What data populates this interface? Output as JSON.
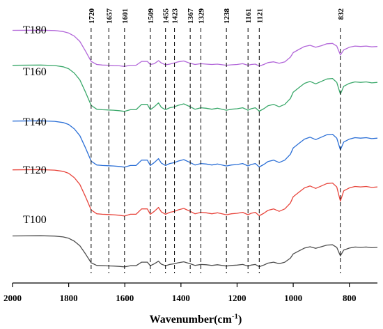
{
  "chart_data": {
    "type": "line",
    "title": "",
    "xlabel": "Wavenumber(cm",
    "xlabel_sup": "-1",
    "xlabel_close": ")",
    "ylabel": "",
    "xlim": [
      2000,
      700
    ],
    "x_reversed": true,
    "x_ticks": [
      2000,
      1800,
      1600,
      1400,
      1200,
      1000,
      800
    ],
    "y_axis_visible": false,
    "grid": false,
    "legend": "none",
    "peak_markers": [
      1720,
      1657,
      1601,
      1509,
      1455,
      1423,
      1367,
      1329,
      1238,
      1161,
      1121,
      832
    ],
    "x": [
      2000,
      1900,
      1850,
      1820,
      1800,
      1780,
      1760,
      1740,
      1720,
      1700,
      1680,
      1657,
      1640,
      1620,
      1601,
      1580,
      1560,
      1540,
      1520,
      1509,
      1495,
      1480,
      1470,
      1455,
      1440,
      1423,
      1410,
      1390,
      1367,
      1350,
      1329,
      1310,
      1290,
      1270,
      1238,
      1220,
      1200,
      1180,
      1161,
      1150,
      1135,
      1121,
      1105,
      1090,
      1070,
      1050,
      1030,
      1010,
      1000,
      980,
      960,
      940,
      920,
      900,
      880,
      860,
      845,
      832,
      820,
      800,
      780,
      760,
      740,
      720,
      700
    ],
    "series": [
      {
        "name": "T180",
        "color": "#b266d9",
        "values": [
          0.99,
          0.995,
          0.985,
          0.96,
          0.92,
          0.84,
          0.7,
          0.45,
          0.18,
          0.1,
          0.085,
          0.08,
          0.07,
          0.065,
          0.05,
          0.08,
          0.08,
          0.18,
          0.18,
          0.1,
          0.12,
          0.2,
          0.14,
          0.09,
          0.11,
          0.14,
          0.17,
          0.19,
          0.13,
          0.1,
          0.12,
          0.11,
          0.1,
          0.11,
          0.08,
          0.09,
          0.1,
          0.12,
          0.08,
          0.1,
          0.11,
          0.06,
          0.1,
          0.15,
          0.17,
          0.13,
          0.17,
          0.29,
          0.41,
          0.49,
          0.57,
          0.6,
          0.55,
          0.59,
          0.64,
          0.65,
          0.58,
          0.35,
          0.48,
          0.55,
          0.58,
          0.57,
          0.58,
          0.56,
          0.57
        ]
      },
      {
        "name": "T160",
        "color": "#3aa86a",
        "values": [
          0.99,
          0.995,
          0.985,
          0.96,
          0.92,
          0.83,
          0.69,
          0.44,
          0.17,
          0.09,
          0.08,
          0.075,
          0.07,
          0.06,
          0.045,
          0.08,
          0.08,
          0.19,
          0.19,
          0.08,
          0.14,
          0.22,
          0.13,
          0.08,
          0.12,
          0.14,
          0.17,
          0.2,
          0.14,
          0.09,
          0.12,
          0.11,
          0.09,
          0.11,
          0.07,
          0.09,
          0.1,
          0.12,
          0.07,
          0.1,
          0.12,
          0.05,
          0.1,
          0.16,
          0.19,
          0.14,
          0.19,
          0.31,
          0.44,
          0.53,
          0.62,
          0.66,
          0.61,
          0.66,
          0.71,
          0.72,
          0.64,
          0.4,
          0.56,
          0.62,
          0.65,
          0.64,
          0.65,
          0.63,
          0.64
        ]
      },
      {
        "name": "T140",
        "color": "#2b6fd6",
        "values": [
          0.99,
          0.995,
          0.985,
          0.96,
          0.92,
          0.83,
          0.69,
          0.44,
          0.17,
          0.09,
          0.08,
          0.075,
          0.07,
          0.06,
          0.045,
          0.08,
          0.08,
          0.19,
          0.19,
          0.08,
          0.14,
          0.22,
          0.13,
          0.08,
          0.12,
          0.14,
          0.17,
          0.2,
          0.14,
          0.09,
          0.12,
          0.11,
          0.09,
          0.11,
          0.07,
          0.09,
          0.1,
          0.12,
          0.07,
          0.1,
          0.12,
          0.05,
          0.1,
          0.16,
          0.19,
          0.14,
          0.19,
          0.31,
          0.44,
          0.53,
          0.62,
          0.66,
          0.61,
          0.66,
          0.71,
          0.72,
          0.64,
          0.4,
          0.56,
          0.62,
          0.65,
          0.64,
          0.65,
          0.63,
          0.64
        ]
      },
      {
        "name": "T120",
        "color": "#e8453c",
        "values": [
          0.99,
          0.995,
          0.985,
          0.96,
          0.92,
          0.83,
          0.69,
          0.44,
          0.17,
          0.09,
          0.08,
          0.075,
          0.07,
          0.06,
          0.045,
          0.08,
          0.08,
          0.19,
          0.19,
          0.08,
          0.14,
          0.22,
          0.13,
          0.08,
          0.12,
          0.14,
          0.17,
          0.2,
          0.14,
          0.09,
          0.12,
          0.11,
          0.09,
          0.11,
          0.07,
          0.09,
          0.1,
          0.12,
          0.07,
          0.1,
          0.12,
          0.05,
          0.1,
          0.16,
          0.19,
          0.14,
          0.19,
          0.31,
          0.44,
          0.53,
          0.62,
          0.66,
          0.61,
          0.66,
          0.71,
          0.72,
          0.64,
          0.35,
          0.56,
          0.62,
          0.65,
          0.64,
          0.65,
          0.63,
          0.64
        ]
      },
      {
        "name": "T100",
        "color": "#4d4d4d",
        "values": [
          0.99,
          0.995,
          0.985,
          0.96,
          0.92,
          0.83,
          0.69,
          0.44,
          0.17,
          0.09,
          0.08,
          0.075,
          0.07,
          0.06,
          0.045,
          0.08,
          0.08,
          0.19,
          0.19,
          0.08,
          0.14,
          0.22,
          0.13,
          0.08,
          0.12,
          0.14,
          0.17,
          0.2,
          0.14,
          0.09,
          0.12,
          0.11,
          0.09,
          0.11,
          0.07,
          0.09,
          0.1,
          0.12,
          0.07,
          0.1,
          0.12,
          0.05,
          0.1,
          0.16,
          0.19,
          0.14,
          0.19,
          0.31,
          0.44,
          0.53,
          0.62,
          0.66,
          0.61,
          0.66,
          0.71,
          0.72,
          0.64,
          0.38,
          0.56,
          0.62,
          0.65,
          0.64,
          0.65,
          0.63,
          0.64
        ]
      }
    ]
  }
}
